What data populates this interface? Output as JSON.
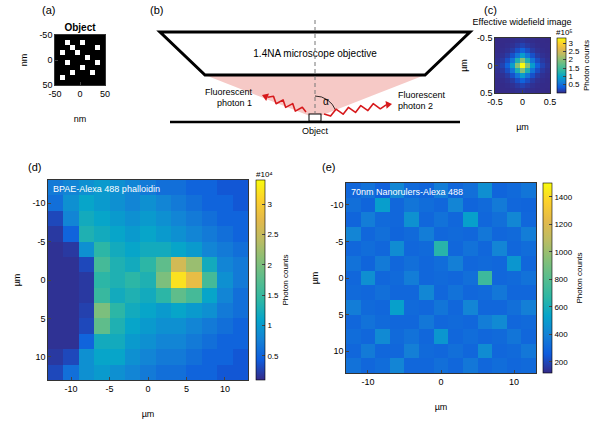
{
  "chart_data": [
    {
      "panel": "(a)",
      "type": "heatmap",
      "title": "Object",
      "color": "gray",
      "x": [
        -45,
        -35,
        -25,
        -15,
        -5,
        5,
        15,
        25,
        35,
        45
      ],
      "y": [
        -45,
        -35,
        -25,
        -15,
        -5,
        5,
        15,
        25,
        35,
        45
      ],
      "z": [
        [
          0,
          0,
          0,
          0,
          0,
          0,
          0,
          0,
          0,
          0
        ],
        [
          0,
          0,
          1,
          0,
          0,
          1,
          0,
          0,
          0,
          0
        ],
        [
          0,
          0,
          0,
          1,
          0,
          0,
          0,
          0,
          1,
          0
        ],
        [
          0,
          1,
          0,
          0,
          1,
          0,
          0,
          0,
          0,
          0
        ],
        [
          0,
          0,
          0,
          0,
          0,
          0,
          1,
          0,
          0,
          0
        ],
        [
          0,
          0,
          1,
          0,
          0,
          0,
          0,
          0,
          1,
          0
        ],
        [
          0,
          0,
          0,
          0,
          0,
          1,
          0,
          0,
          0,
          0
        ],
        [
          0,
          0,
          0,
          1,
          0,
          0,
          0,
          1,
          0,
          0
        ],
        [
          0,
          1,
          0,
          0,
          0,
          0,
          0,
          0,
          0,
          0
        ],
        [
          0,
          0,
          0,
          0,
          0,
          0,
          0,
          0,
          0,
          0
        ]
      ],
      "xlim": [
        -50,
        50
      ],
      "ylim": [
        50,
        -50
      ],
      "xticks": [
        -50,
        0,
        50
      ],
      "yticks": [
        -50,
        0,
        50
      ],
      "xlabel": "nm",
      "ylabel": "nm"
    },
    {
      "panel": "(c)",
      "type": "heatmap",
      "title": "Effective widefield image",
      "color": "parula",
      "x": [
        -0.4545,
        -0.3636,
        -0.2727,
        -0.1818,
        -0.0909,
        0,
        0.0909,
        0.1818,
        0.2727,
        0.3636,
        0.4545
      ],
      "y": [
        -0.4545,
        -0.3636,
        -0.2727,
        -0.1818,
        -0.0909,
        0,
        0.0909,
        0.1818,
        0.2727,
        0.3636,
        0.4545
      ],
      "z": [
        [
          130,
          330,
          790,
          1850,
          3960,
          6600,
          3960,
          1850,
          790,
          330,
          130
        ],
        [
          330,
          825,
          1980,
          4620,
          9900,
          16500,
          9900,
          4620,
          1980,
          825,
          330
        ],
        [
          790,
          1980,
          4750,
          11090,
          23760,
          39600,
          23760,
          11090,
          4750,
          1980,
          790
        ],
        [
          1850,
          4620,
          11090,
          25870,
          55440,
          92400,
          55440,
          25870,
          11090,
          4620,
          1850
        ],
        [
          3960,
          9900,
          23760,
          55440,
          118800,
          198000,
          118800,
          55440,
          23760,
          9900,
          3960
        ],
        [
          6600,
          16500,
          39600,
          92400,
          198000,
          330000,
          198000,
          92400,
          39600,
          16500,
          6600
        ],
        [
          3960,
          9900,
          23760,
          55440,
          118800,
          198000,
          118800,
          55440,
          23760,
          9900,
          3960
        ],
        [
          1850,
          4620,
          11090,
          25870,
          55440,
          92400,
          55440,
          25870,
          11090,
          4620,
          1850
        ],
        [
          790,
          1980,
          4750,
          11090,
          23760,
          39600,
          23760,
          11090,
          4750,
          1980,
          790
        ],
        [
          330,
          825,
          1980,
          4620,
          9900,
          16500,
          9900,
          4620,
          1980,
          825,
          330
        ],
        [
          130,
          330,
          790,
          1850,
          3960,
          6600,
          3960,
          1850,
          790,
          330,
          130
        ]
      ],
      "xlim": [
        -0.5,
        0.5
      ],
      "ylim": [
        0.5,
        -0.5
      ],
      "xticks": [
        -0.5,
        0,
        0.5
      ],
      "yticks": [
        -0.5,
        0,
        0.5
      ],
      "xlabel": "µm",
      "ylabel": "µm",
      "colorbar": {
        "range": [
          0,
          330000
        ],
        "title": "Photon counts",
        "exponent": "#10⁵",
        "ticks": [
          {
            "value": 50000,
            "label": "0.5"
          },
          {
            "value": 100000,
            "label": "1"
          },
          {
            "value": 150000,
            "label": "1.5"
          },
          {
            "value": 200000,
            "label": "2"
          },
          {
            "value": 250000,
            "label": "2.5"
          },
          {
            "value": 300000,
            "label": "3"
          }
        ]
      }
    },
    {
      "panel": "(d)",
      "type": "heatmap",
      "annotation": "BPAE-Alexa 488 phalloidin",
      "color": "parula",
      "x": [
        -12,
        -10,
        -8,
        -6,
        -4,
        -2,
        0,
        2,
        4,
        6,
        8,
        10,
        12
      ],
      "y": [
        -12,
        -10,
        -8,
        -6,
        -4,
        -2,
        0,
        2,
        4,
        6,
        8,
        10,
        12
      ],
      "z": [
        [
          7000,
          8000,
          9000,
          10000,
          9000,
          8000,
          7000,
          6000,
          6000,
          5000,
          5000,
          4000,
          4000
        ],
        [
          6000,
          9000,
          11000,
          10000,
          9000,
          8000,
          9000,
          8000,
          7000,
          6000,
          5000,
          5000,
          4000
        ],
        [
          3000,
          8000,
          12000,
          11000,
          10000,
          9000,
          10000,
          9000,
          8000,
          7000,
          6000,
          5000,
          5000
        ],
        [
          2000,
          5000,
          13000,
          12000,
          11000,
          10000,
          11000,
          10000,
          9000,
          8000,
          7000,
          6000,
          5000
        ],
        [
          1500,
          2000,
          9000,
          14000,
          12000,
          11000,
          12000,
          12000,
          11000,
          10000,
          8000,
          7000,
          6000
        ],
        [
          1500,
          1500,
          3000,
          16000,
          13000,
          12000,
          14000,
          18000,
          26000,
          22000,
          12000,
          8000,
          7000
        ],
        [
          1500,
          1500,
          2000,
          14000,
          13000,
          14000,
          13000,
          20000,
          32000,
          28000,
          16000,
          9000,
          7000
        ],
        [
          1500,
          1500,
          2000,
          15000,
          12000,
          13000,
          12000,
          14000,
          18000,
          16000,
          11000,
          8000,
          6000
        ],
        [
          1500,
          1500,
          2500,
          20000,
          14000,
          12000,
          11000,
          10000,
          11000,
          10000,
          9000,
          7000,
          6000
        ],
        [
          1500,
          1500,
          3000,
          18000,
          13000,
          11000,
          10000,
          9000,
          9000,
          8000,
          7000,
          6000,
          5000
        ],
        [
          1500,
          1500,
          5000,
          12000,
          12000,
          10000,
          9000,
          8000,
          8000,
          7000,
          6000,
          5000,
          5000
        ],
        [
          2000,
          3000,
          9000,
          11000,
          11000,
          9000,
          8000,
          7000,
          7000,
          6000,
          5000,
          5000,
          4000
        ],
        [
          3000,
          6000,
          9000,
          10000,
          9000,
          8000,
          7000,
          6000,
          6000,
          5000,
          5000,
          4000,
          4000
        ]
      ],
      "xlim": [
        -13,
        13
      ],
      "ylim": [
        13,
        -13
      ],
      "xticks": [
        -10,
        -5,
        0,
        5,
        10
      ],
      "yticks": [
        -10,
        -5,
        0,
        5,
        10
      ],
      "xlabel": "µm",
      "ylabel": "µm",
      "colorbar": {
        "range": [
          1000,
          34000
        ],
        "title": "Photon counts",
        "exponent": "#10⁴",
        "ticks": [
          {
            "value": 5000,
            "label": "0.5"
          },
          {
            "value": 10000,
            "label": "1"
          },
          {
            "value": 15000,
            "label": "1.5"
          },
          {
            "value": 20000,
            "label": "2"
          },
          {
            "value": 25000,
            "label": "2.5"
          },
          {
            "value": 30000,
            "label": "3"
          }
        ]
      }
    },
    {
      "panel": "(e)",
      "type": "heatmap",
      "annotation": "70nm Nanorulers-Alexa 488",
      "color": "parula",
      "x": [
        -12,
        -10,
        -8,
        -6,
        -4,
        -2,
        0,
        2,
        4,
        6,
        8,
        10,
        12
      ],
      "y": [
        -12,
        -10,
        -8,
        -6,
        -4,
        -2,
        0,
        2,
        4,
        6,
        8,
        10,
        12
      ],
      "z": [
        [
          300,
          340,
          280,
          420,
          310,
          290,
          380,
          300,
          330,
          450,
          290,
          310,
          350
        ],
        [
          330,
          290,
          510,
          300,
          350,
          320,
          300,
          410,
          290,
          310,
          370,
          300,
          290
        ],
        [
          290,
          380,
          310,
          300,
          460,
          300,
          340,
          300,
          520,
          300,
          330,
          420,
          300
        ],
        [
          410,
          300,
          330,
          290,
          310,
          380,
          300,
          310,
          300,
          360,
          300,
          310,
          380
        ],
        [
          300,
          320,
          300,
          440,
          300,
          310,
          650,
          300,
          340,
          300,
          410,
          300,
          320
        ],
        [
          340,
          290,
          370,
          300,
          330,
          300,
          320,
          390,
          300,
          310,
          300,
          480,
          300
        ],
        [
          300,
          450,
          300,
          310,
          380,
          300,
          310,
          300,
          330,
          720,
          300,
          310,
          340
        ],
        [
          310,
          300,
          330,
          300,
          300,
          420,
          300,
          340,
          300,
          310,
          360,
          300,
          300
        ],
        [
          380,
          310,
          300,
          520,
          310,
          300,
          350,
          300,
          410,
          300,
          300,
          330,
          390
        ],
        [
          300,
          340,
          310,
          300,
          300,
          360,
          300,
          310,
          300,
          380,
          430,
          300,
          310
        ],
        [
          320,
          300,
          430,
          310,
          340,
          300,
          480,
          300,
          320,
          300,
          310,
          350,
          300
        ],
        [
          300,
          370,
          300,
          300,
          390,
          310,
          300,
          330,
          300,
          440,
          300,
          310,
          360
        ],
        [
          340,
          300,
          320,
          410,
          300,
          300,
          330,
          300,
          360,
          300,
          320,
          300,
          310
        ]
      ],
      "xlim": [
        -13,
        13
      ],
      "ylim": [
        13,
        -13
      ],
      "xticks": [
        -10,
        0,
        10
      ],
      "yticks": [
        -10,
        -5,
        0,
        5,
        10
      ],
      "xlabel": "µm",
      "ylabel": "µm",
      "colorbar": {
        "range": [
          120,
          1500
        ],
        "title": "Photon counts",
        "ticks": [
          200,
          400,
          600,
          800,
          1000,
          1200,
          1400
        ]
      }
    }
  ],
  "diagram": {
    "panel": "(b)",
    "objective": "1.4NA microscope objective",
    "photon_1": "Fluorescent photon 1",
    "photon_2": "Fluorescent photon 2",
    "object": "Object",
    "angle": "α"
  }
}
